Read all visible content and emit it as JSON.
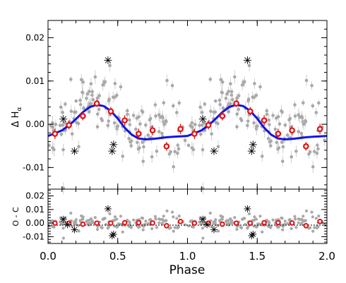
{
  "chart_data": [
    {
      "type": "scatter",
      "panel": "main",
      "ylabel": "Δ H",
      "ylabel_subscript": "α",
      "xlim": [
        0.0,
        2.0
      ],
      "ylim": [
        -0.015,
        0.024
      ],
      "yticks": [
        0.02,
        0.01,
        0.0,
        -0.01
      ],
      "ytick_labels": [
        "0.02",
        "0.01",
        "0.00",
        "-0.01"
      ],
      "xticks": [
        0.0,
        0.5,
        1.0,
        1.5,
        2.0
      ],
      "grid": false,
      "series": [
        {
          "kind": "model_curve",
          "color": "#1414e0",
          "x": [
            0.0,
            0.05,
            0.1,
            0.15,
            0.2,
            0.25,
            0.3,
            0.35,
            0.4,
            0.45,
            0.5,
            0.55,
            0.6,
            0.65,
            0.7,
            0.75,
            0.8,
            0.85,
            0.9,
            0.95,
            1.0,
            1.05,
            1.1,
            1.15,
            1.2,
            1.25,
            1.3,
            1.35,
            1.4,
            1.45,
            1.5,
            1.55,
            1.6,
            1.65,
            1.7,
            1.75,
            1.8,
            1.85,
            1.9,
            1.95,
            2.0
          ],
          "y": [
            -0.0027,
            -0.0021,
            -0.0014,
            -0.0003,
            0.0012,
            0.0028,
            0.004,
            0.0045,
            0.0042,
            0.0031,
            0.0013,
            -0.0008,
            -0.0024,
            -0.0033,
            -0.0035,
            -0.0034,
            -0.0032,
            -0.003,
            -0.0029,
            -0.0028,
            -0.0027,
            -0.0021,
            -0.0014,
            -0.0003,
            0.0012,
            0.0028,
            0.004,
            0.0045,
            0.0042,
            0.0031,
            0.0013,
            -0.0008,
            -0.0024,
            -0.0033,
            -0.0035,
            -0.0034,
            -0.0032,
            -0.003,
            -0.0029,
            -0.0028,
            -0.0027
          ]
        },
        {
          "kind": "binned",
          "color": "#e01010",
          "x": [
            0.05,
            0.15,
            0.25,
            0.35,
            0.45,
            0.55,
            0.65,
            0.75,
            0.85,
            0.95,
            1.05,
            1.15,
            1.25,
            1.35,
            1.45,
            1.55,
            1.65,
            1.75,
            1.85,
            1.95
          ],
          "y": [
            -0.0022,
            -0.0002,
            0.0019,
            0.0048,
            0.003,
            0.0009,
            -0.0022,
            -0.0014,
            -0.0051,
            -0.0011,
            -0.0022,
            -0.0002,
            0.0019,
            0.0048,
            0.003,
            0.0009,
            -0.0022,
            -0.0014,
            -0.0051,
            -0.0011
          ],
          "err": [
            0.0012,
            0.001,
            0.001,
            0.0008,
            0.001,
            0.0012,
            0.0012,
            0.0012,
            0.001,
            0.0012,
            0.0012,
            0.001,
            0.001,
            0.0008,
            0.001,
            0.0012,
            0.0012,
            0.0012,
            0.001,
            0.0012
          ]
        },
        {
          "kind": "outliers",
          "marker": "asterisk",
          "x": [
            0.11,
            0.19,
            0.43,
            0.46,
            0.47,
            1.11,
            1.19,
            1.43,
            1.46,
            1.47
          ],
          "y": [
            0.0012,
            -0.0062,
            0.0148,
            -0.0062,
            -0.0047,
            0.0012,
            -0.0062,
            0.0148,
            -0.0062,
            -0.0047
          ]
        }
      ]
    },
    {
      "type": "scatter",
      "panel": "residuals",
      "xlabel": "Phase",
      "ylabel": "O - C",
      "xlim": [
        0.0,
        2.0
      ],
      "ylim": [
        -0.015,
        0.025
      ],
      "xticks": [
        0.0,
        0.5,
        1.0,
        1.5,
        2.0
      ],
      "xtick_labels": [
        "0.0",
        "0.5",
        "1.0",
        "1.5",
        "2.0"
      ],
      "yticks": [
        0.02,
        0.01,
        0.0,
        -0.01
      ],
      "ytick_labels": [
        "0.02",
        "0.01",
        "0.00",
        "-0.01"
      ],
      "grid": false,
      "series": [
        {
          "kind": "binned",
          "color": "#e01010",
          "x": [
            0.05,
            0.15,
            0.25,
            0.35,
            0.45,
            0.55,
            0.65,
            0.75,
            0.85,
            0.95,
            1.05,
            1.15,
            1.25,
            1.35,
            1.45,
            1.55,
            1.65,
            1.75,
            1.85,
            1.95
          ],
          "y": [
            0.0,
            0.0,
            -0.0008,
            0.0,
            0.0,
            0.0003,
            0.0003,
            0.0001,
            -0.0019,
            0.0012,
            0.0,
            0.0,
            -0.0008,
            0.0,
            0.0,
            0.0003,
            0.0003,
            0.0001,
            -0.0019,
            0.0012
          ]
        },
        {
          "kind": "outliers",
          "marker": "asterisk",
          "x": [
            0.11,
            0.14,
            0.19,
            0.43,
            0.46,
            0.47,
            1.11,
            1.14,
            1.19,
            1.43,
            1.46,
            1.47
          ],
          "y": [
            0.0028,
            -0.0012,
            -0.0048,
            0.0105,
            -0.0093,
            -0.0082,
            0.0028,
            -0.0012,
            -0.0048,
            0.0105,
            -0.0093,
            -0.0082
          ]
        }
      ]
    }
  ]
}
